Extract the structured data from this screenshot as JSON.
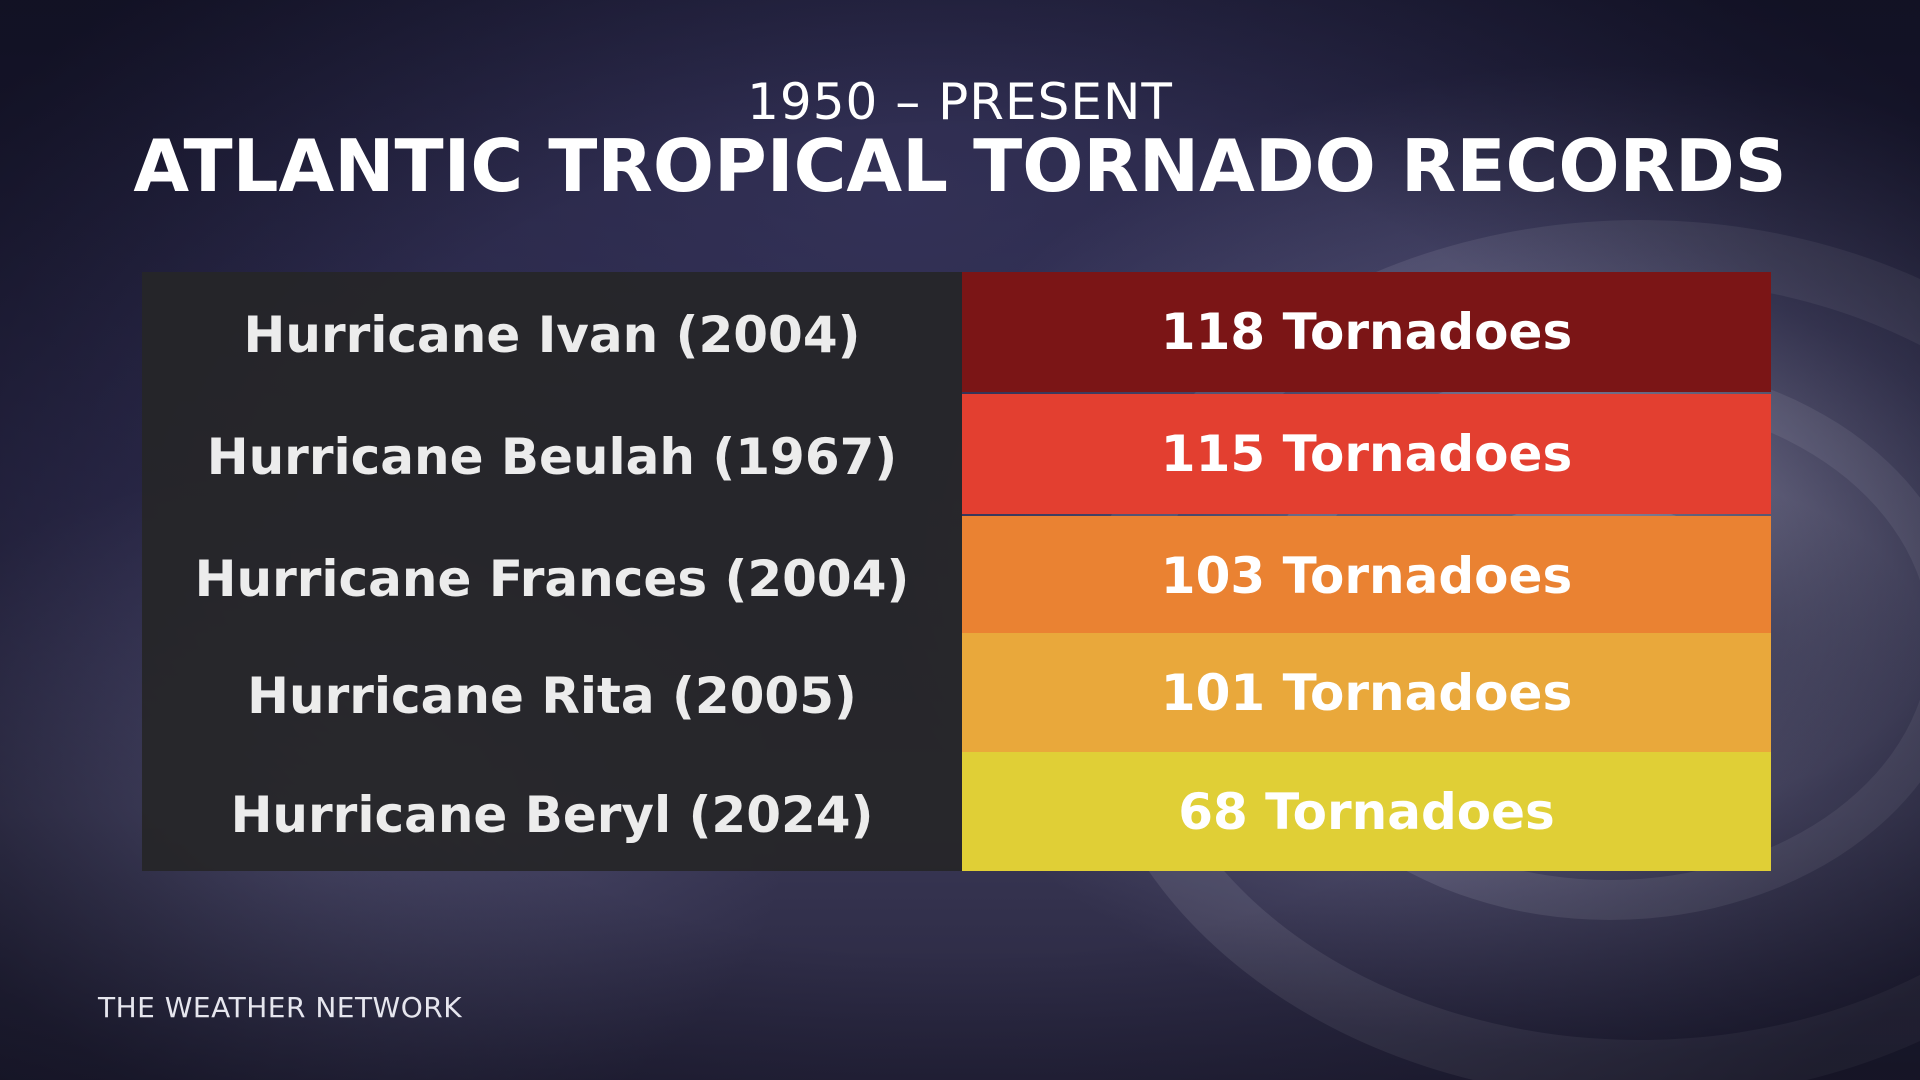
{
  "subtitle": "1950 – PRESENT",
  "title": "ATLANTIC TROPICAL TORNADO RECORDS",
  "brand": "THE WEATHER NETWORK",
  "chart_data": {
    "type": "table",
    "title": "ATLANTIC TROPICAL TORNADO RECORDS",
    "subtitle": "1950 – PRESENT",
    "rows": [
      {
        "name": "Hurricane Ivan (2004)",
        "value": 118,
        "value_label": "118 Tornadoes",
        "color": "#7b1516"
      },
      {
        "name": "Hurricane Beulah (1967)",
        "value": 115,
        "value_label": "115 Tornadoes",
        "color": "#e33f30"
      },
      {
        "name": "Hurricane Frances (2004)",
        "value": 103,
        "value_label": "103 Tornadoes",
        "color": "#ea8232"
      },
      {
        "name": "Hurricane Rita (2005)",
        "value": 101,
        "value_label": "101 Tornadoes",
        "color": "#e9a83b"
      },
      {
        "name": "Hurricane Beryl (2024)",
        "value": 68,
        "value_label": "68 Tornadoes",
        "color": "#e0cf36"
      }
    ]
  }
}
